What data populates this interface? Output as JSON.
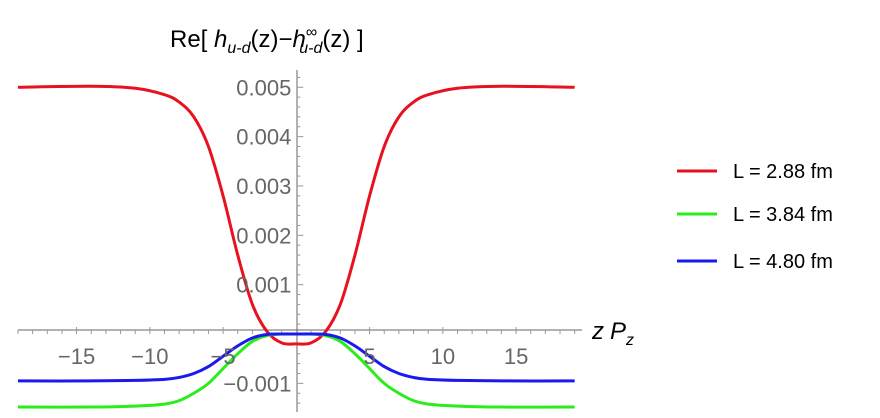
{
  "chart_data": {
    "type": "line",
    "title": {
      "prefix": "Re[ ",
      "h1": "h",
      "sub1": "u-d",
      "mid": "(z)−",
      "h2": "h",
      "sup2": "∞",
      "sub2": "u-d",
      "suffix": "(z) ]"
    },
    "xlabel": {
      "z": "z",
      "P": "P",
      "sub": "z"
    },
    "xlim": [
      -19,
      19.5
    ],
    "ylim": [
      -0.00158,
      0.00535
    ],
    "x_ticks": [
      {
        "value": -15,
        "label": "−15"
      },
      {
        "value": -10,
        "label": "−10"
      },
      {
        "value": -5,
        "label": "−5"
      },
      {
        "value": 5,
        "label": "5"
      },
      {
        "value": 10,
        "label": "10"
      },
      {
        "value": 15,
        "label": "15"
      }
    ],
    "y_ticks": [
      {
        "value": -0.001,
        "label": "−0.001"
      },
      {
        "value": 0.001,
        "label": "0.001"
      },
      {
        "value": 0.002,
        "label": "0.002"
      },
      {
        "value": 0.003,
        "label": "0.003"
      },
      {
        "value": 0.004,
        "label": "0.004"
      },
      {
        "value": 0.005,
        "label": "0.005"
      }
    ],
    "grid": false,
    "legend_position": "right",
    "series": [
      {
        "name": "L = 2.88 fm",
        "color": "#e8111f",
        "x": [
          -19,
          -14,
          -11,
          -9,
          -8,
          -7,
          -6,
          -5,
          -4,
          -3,
          -2,
          -1,
          0,
          1,
          2,
          3,
          4,
          5,
          6,
          7,
          8,
          9,
          11,
          14,
          19
        ],
        "y": [
          0.005,
          0.00502,
          0.00498,
          0.00485,
          0.0047,
          0.0044,
          0.0038,
          0.0028,
          0.0016,
          0.0006,
          5e-05,
          -0.00018,
          -0.0002,
          -0.00018,
          5e-05,
          0.0006,
          0.0016,
          0.0028,
          0.0038,
          0.0044,
          0.0047,
          0.00485,
          0.00498,
          0.00502,
          0.005
        ]
      },
      {
        "name": "L = 3.84 fm",
        "color": "#2aee1a",
        "x": [
          -19,
          -14,
          -11,
          -9,
          -8,
          -7,
          -6,
          -5,
          -4,
          -3,
          -2,
          -1,
          0,
          1,
          2,
          3,
          4,
          5,
          6,
          7,
          8,
          9,
          11,
          14,
          19
        ],
        "y": [
          -0.00148,
          -0.00148,
          -0.00146,
          -0.00142,
          -0.00135,
          -0.0012,
          -0.001,
          -0.0007,
          -0.0004,
          -0.00015,
          -3e-05,
          0,
          0,
          0,
          -3e-05,
          -0.00015,
          -0.0004,
          -0.0007,
          -0.001,
          -0.0012,
          -0.00135,
          -0.00142,
          -0.00146,
          -0.00148,
          -0.00148
        ]
      },
      {
        "name": "L = 4.80 fm",
        "color": "#1a1aee",
        "x": [
          -19,
          -14,
          -11,
          -9,
          -8,
          -7,
          -6,
          -5,
          -4,
          -3,
          -2,
          -1,
          0,
          1,
          2,
          3,
          4,
          5,
          6,
          7,
          8,
          9,
          11,
          14,
          19
        ],
        "y": [
          -0.00095,
          -0.00095,
          -0.00094,
          -0.00092,
          -0.00088,
          -0.0008,
          -0.00066,
          -0.00045,
          -0.00024,
          -8e-05,
          -1e-05,
          0,
          0,
          0,
          -1e-05,
          -8e-05,
          -0.00024,
          -0.00045,
          -0.00066,
          -0.0008,
          -0.00088,
          -0.00092,
          -0.00094,
          -0.00095,
          -0.00095
        ]
      }
    ]
  }
}
